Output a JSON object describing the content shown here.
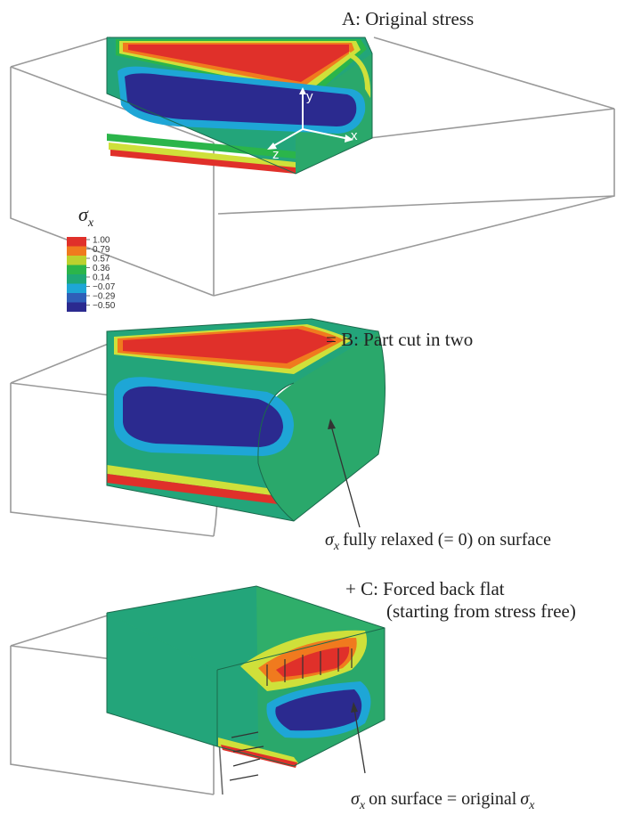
{
  "panels": {
    "a_title": "A: Original stress",
    "b_title": "= B: Part cut in two",
    "c_title_line1": "+ C: Forced back flat",
    "c_title_line2": "(starting from stress free)"
  },
  "annotations": {
    "b_note_symbol": "σ",
    "b_note_sub": "x",
    "b_note_text": "fully relaxed (= 0) on surface",
    "c_note_symbol": "σ",
    "c_note_sub": "x",
    "c_note_text": "on surface = original",
    "c_note_symbol2": "σ",
    "c_note_sub2": "x"
  },
  "axes": {
    "x": "x",
    "y": "y",
    "z": "z"
  },
  "legend": {
    "symbol": "σ",
    "subscript": "x",
    "ticks": [
      "1.00",
      "0.79",
      "0.57",
      "0.36",
      "0.14",
      "−0.07",
      "−0.29",
      "−0.50"
    ],
    "colors": [
      "#e0302a",
      "#f07a1e",
      "#bcd12e",
      "#2bb54a",
      "#1fa876",
      "#1ea6d6",
      "#2f5fb8",
      "#2b2a8f"
    ]
  },
  "colors": {
    "face_green": "#23a57a",
    "top_green": "#2fae6a",
    "red": "#e0302a",
    "orange": "#f07a1e",
    "yellow": "#cfe03a",
    "cyan": "#1ea6d6",
    "blue": "#2b2a8f"
  }
}
